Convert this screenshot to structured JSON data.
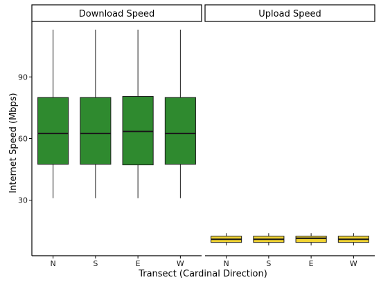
{
  "chart_data": {
    "type": "boxplot",
    "xlabel": "Transect (Cardinal Direction)",
    "ylabel": "Internet Speed (Mbps)",
    "categories": [
      "N",
      "S",
      "E",
      "W"
    ],
    "y_ticks": [
      30,
      60,
      90
    ],
    "ylim": [
      3,
      117
    ],
    "grid": false,
    "legend": "none",
    "panels": [
      {
        "title": "Download Speed",
        "fill_color": "#2f8a2f",
        "boxes": [
          {
            "category": "N",
            "min": 31,
            "q1": 47.5,
            "median": 62.5,
            "q3": 80,
            "max": 113
          },
          {
            "category": "S",
            "min": 31,
            "q1": 47.5,
            "median": 62.5,
            "q3": 80,
            "max": 113
          },
          {
            "category": "E",
            "min": 31,
            "q1": 47.2,
            "median": 63.5,
            "q3": 80.5,
            "max": 113
          },
          {
            "category": "W",
            "min": 31,
            "q1": 47.5,
            "median": 62.5,
            "q3": 80,
            "max": 113
          }
        ]
      },
      {
        "title": "Upload Speed",
        "fill_color": "#f2d431",
        "boxes": [
          {
            "category": "N",
            "min": 8,
            "q1": 9.5,
            "median": 11,
            "q3": 12.5,
            "max": 14
          },
          {
            "category": "S",
            "min": 8,
            "q1": 9.5,
            "median": 11,
            "q3": 12.5,
            "max": 14
          },
          {
            "category": "E",
            "min": 8,
            "q1": 9.5,
            "median": 11.5,
            "q3": 12.5,
            "max": 14
          },
          {
            "category": "W",
            "min": 8,
            "q1": 9.5,
            "median": 11,
            "q3": 12.5,
            "max": 14
          }
        ]
      }
    ],
    "colors": {
      "box_stroke": "#1a1a1a",
      "axis": "#000000",
      "strip_fill": "#ffffff"
    }
  }
}
